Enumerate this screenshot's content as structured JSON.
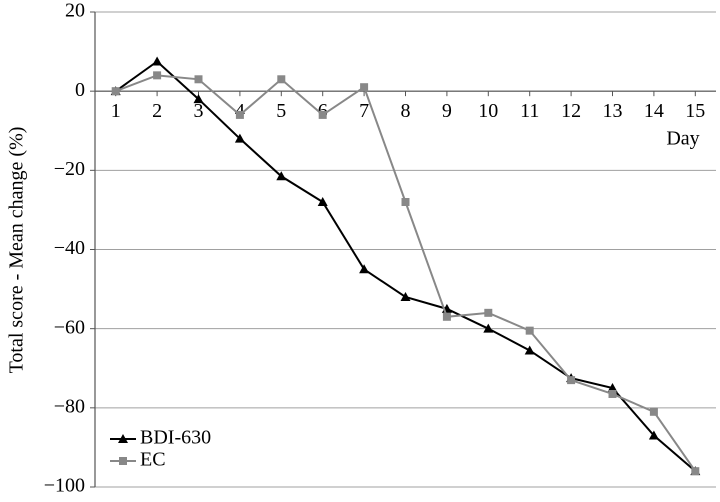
{
  "chart_data": {
    "type": "line",
    "y_label": "Total score - Mean change (%)",
    "x_label": "Day",
    "x": [
      1,
      2,
      3,
      4,
      5,
      6,
      7,
      8,
      9,
      10,
      11,
      12,
      13,
      14,
      15
    ],
    "xlim": [
      0.5,
      15.5
    ],
    "xticks": [
      1,
      2,
      3,
      4,
      5,
      6,
      7,
      8,
      9,
      10,
      11,
      12,
      13,
      14,
      15
    ],
    "ylim": [
      -100,
      20
    ],
    "yticks": [
      {
        "value": -100,
        "label": "−100"
      },
      {
        "value": -80,
        "label": "−80"
      },
      {
        "value": -60,
        "label": "−60"
      },
      {
        "value": -40,
        "label": "−40"
      },
      {
        "value": -20,
        "label": "−20"
      },
      0,
      20
    ],
    "grid": true,
    "legend": "lower left",
    "series": [
      {
        "name": "BDI-630",
        "color": "#000000",
        "marker": "triangle",
        "values": [
          0,
          7.5,
          -2,
          -12,
          -21.5,
          -28,
          -45,
          -52,
          -55,
          -60,
          -65.5,
          -72.5,
          -75,
          -87,
          -96
        ]
      },
      {
        "name": "EC",
        "color": "#888888",
        "marker": "square",
        "values": [
          0,
          4,
          3,
          -6,
          3,
          -6,
          1,
          -28,
          -57,
          -56,
          -60.5,
          -73,
          -76.5,
          -81,
          -96
        ]
      }
    ]
  }
}
